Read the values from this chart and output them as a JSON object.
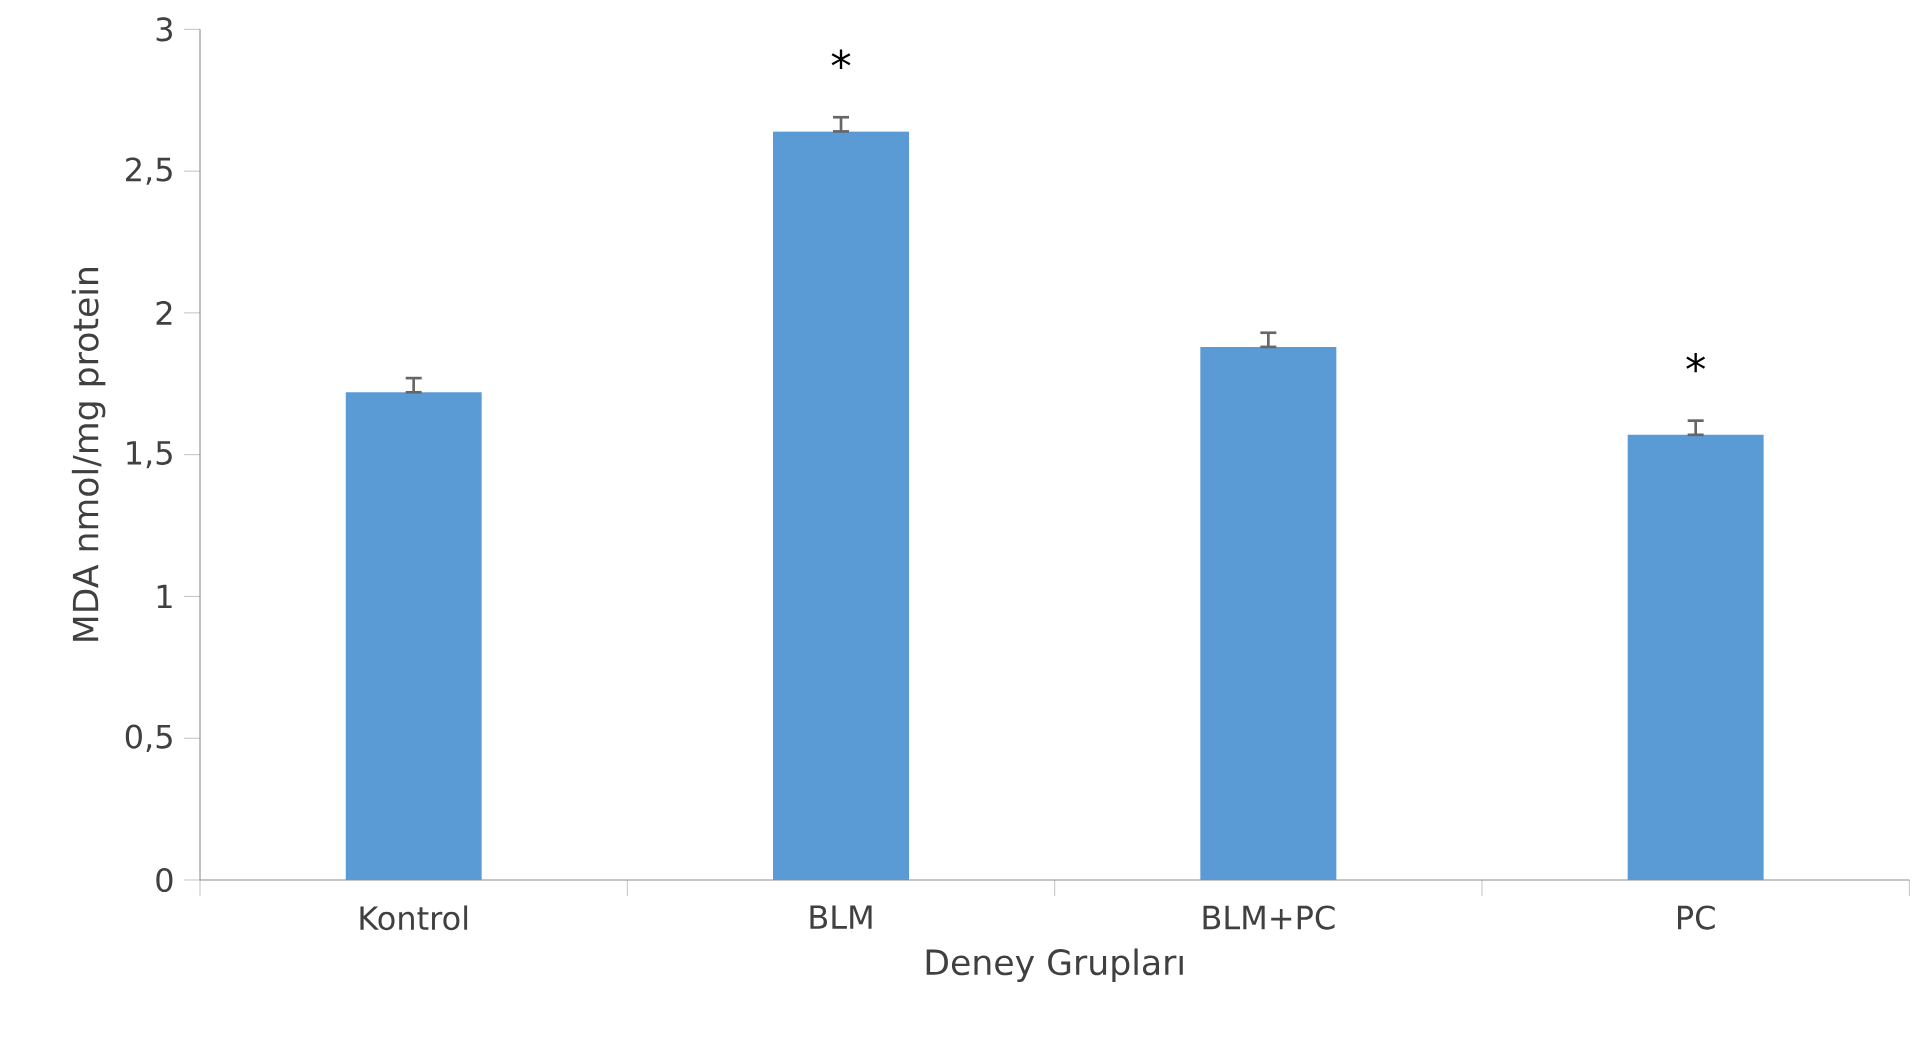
{
  "chart_data": {
    "type": "bar",
    "xlabel": "Deney Grupları",
    "ylabel": "MDA nmol/mg protein",
    "categories": [
      "Kontrol",
      "BLM",
      "BLM+PC",
      "PC"
    ],
    "values": [
      1.72,
      2.64,
      1.88,
      1.57
    ],
    "errors": [
      [
        1.72,
        1.77
      ],
      [
        2.64,
        2.69
      ],
      [
        1.88,
        1.93
      ],
      [
        1.57,
        1.62
      ]
    ],
    "color": "#5b9bd5",
    "ylim": [
      0,
      3
    ],
    "yticks": [
      0,
      {
        "value": 0.5,
        "label": "0,5"
      },
      1,
      {
        "value": 1.5,
        "label": "1,5"
      },
      2,
      {
        "value": 2.5,
        "label": "2,5"
      },
      3
    ],
    "grid": false,
    "annotations": [
      {
        "text": "*",
        "x": "BLM",
        "y": 2.69
      },
      {
        "text": "*",
        "x": "PC",
        "y": 1.62
      }
    ]
  }
}
